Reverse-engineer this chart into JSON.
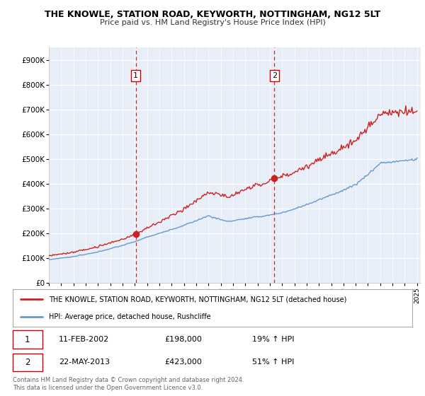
{
  "title": "THE KNOWLE, STATION ROAD, KEYWORTH, NOTTINGHAM, NG12 5LT",
  "subtitle": "Price paid vs. HM Land Registry's House Price Index (HPI)",
  "legend_line1": "THE KNOWLE, STATION ROAD, KEYWORTH, NOTTINGHAM, NG12 5LT (detached house)",
  "legend_line2": "HPI: Average price, detached house, Rushcliffe",
  "transaction1_date": "11-FEB-2002",
  "transaction1_price": "£198,000",
  "transaction1_hpi": "19% ↑ HPI",
  "transaction2_date": "22-MAY-2013",
  "transaction2_price": "£423,000",
  "transaction2_hpi": "51% ↑ HPI",
  "footnote": "Contains HM Land Registry data © Crown copyright and database right 2024.\nThis data is licensed under the Open Government Licence v3.0.",
  "line_color_property": "#cc2222",
  "line_color_hpi": "#6699cc",
  "vline_color": "#cc0000",
  "background_color": "#e8eef8",
  "ylim": [
    0,
    950000
  ],
  "yticks": [
    0,
    100000,
    200000,
    300000,
    400000,
    500000,
    600000,
    700000,
    800000,
    900000
  ],
  "ytick_labels": [
    "£0",
    "£100K",
    "£200K",
    "£300K",
    "£400K",
    "£500K",
    "£600K",
    "£700K",
    "£800K",
    "£900K"
  ],
  "t1": 2002.08,
  "t2": 2013.37,
  "p1": 198000,
  "p2": 423000
}
